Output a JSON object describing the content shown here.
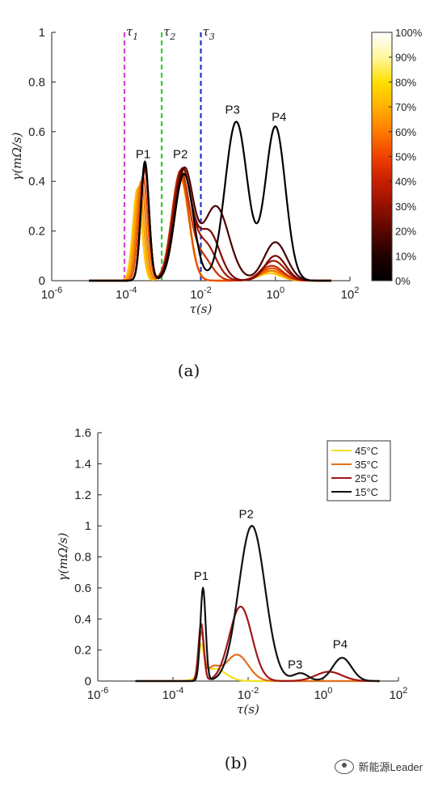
{
  "chart_data": [
    {
      "type": "line",
      "panel": "(a)",
      "xscale": "log",
      "xlim_exp": [
        -6,
        2
      ],
      "ylim": [
        0,
        1
      ],
      "xlabel": "τ(s)",
      "ylabel": "γ(mΩ/s)",
      "x_tick_labels": [
        "10-6",
        "10-4",
        "10-2",
        "100",
        "102"
      ],
      "y_ticks": [
        0,
        0.2,
        0.4,
        0.6,
        0.8,
        1
      ],
      "y_tick_labels": [
        "0",
        "0.2",
        "0.4",
        "0.6",
        "0.8",
        "1"
      ],
      "vlines": [
        {
          "label": "τ1",
          "x_exp": -4.05,
          "color": "#e040e0"
        },
        {
          "label": "τ2",
          "x_exp": -3.05,
          "color": "#33cc33"
        },
        {
          "label": "τ3",
          "x_exp": -2.0,
          "color": "#2233cc"
        }
      ],
      "peak_labels": [
        {
          "text": "P1",
          "x_exp": -3.55,
          "y": 0.48
        },
        {
          "text": "P2",
          "x_exp": -2.55,
          "y": 0.48
        },
        {
          "text": "P3",
          "x_exp": -1.15,
          "y": 0.66
        },
        {
          "text": "P4",
          "x_exp": 0.1,
          "y": 0.63
        }
      ],
      "colorbar": {
        "labels": [
          "100%",
          "90%",
          "80%",
          "70%",
          "60%",
          "50%",
          "40%",
          "30%",
          "20%",
          "10%",
          "0%"
        ],
        "colors": [
          "#ffffff",
          "#fff6a0",
          "#ffe000",
          "#ffb000",
          "#ff7a00",
          "#f04000",
          "#c81e00",
          "#941000",
          "#5a0600",
          "#200000",
          "#000000"
        ]
      },
      "series": [
        {
          "soc": 0,
          "color": "#000000",
          "peaks": [
            [
              -3.5,
              0.48,
              0.11
            ],
            [
              -2.45,
              0.43,
              0.25
            ],
            [
              -1.05,
              0.64,
              0.3
            ],
            [
              0.0,
              0.62,
              0.27
            ]
          ]
        },
        {
          "soc": 10,
          "color": "#4a0000",
          "peaks": [
            [
              -3.5,
              0.47,
              0.11
            ],
            [
              -2.45,
              0.44,
              0.24
            ],
            [
              -1.6,
              0.3,
              0.35
            ],
            [
              0.0,
              0.155,
              0.3
            ]
          ]
        },
        {
          "soc": 20,
          "color": "#7a0a00",
          "peaks": [
            [
              -3.5,
              0.46,
              0.11
            ],
            [
              -2.5,
              0.44,
              0.24
            ],
            [
              -1.8,
              0.2,
              0.3
            ],
            [
              0.0,
              0.1,
              0.28
            ]
          ]
        },
        {
          "soc": 30,
          "color": "#a01800",
          "peaks": [
            [
              -3.5,
              0.46,
              0.11
            ],
            [
              -2.5,
              0.43,
              0.23
            ],
            [
              -1.9,
              0.15,
              0.3
            ],
            [
              -0.05,
              0.08,
              0.3
            ]
          ]
        },
        {
          "soc": 40,
          "color": "#c83000",
          "peaks": [
            [
              -3.5,
              0.45,
              0.11
            ],
            [
              -2.55,
              0.43,
              0.23
            ],
            [
              -2.0,
              0.1,
              0.28
            ],
            [
              -0.1,
              0.06,
              0.3
            ]
          ]
        },
        {
          "soc": 50,
          "color": "#e85000",
          "peaks": [
            [
              -3.55,
              0.42,
              0.12
            ],
            [
              -2.55,
              0.43,
              0.23
            ],
            [
              -0.1,
              0.05,
              0.3
            ]
          ]
        },
        {
          "soc": 60,
          "color": "#f07a00",
          "peaks": [
            [
              -3.6,
              0.4,
              0.12
            ],
            [
              -2.55,
              0.42,
              0.23
            ],
            [
              -0.1,
              0.04,
              0.3
            ]
          ]
        },
        {
          "soc": 70,
          "color": "#f7a000",
          "peaks": [
            [
              -3.65,
              0.38,
              0.12
            ],
            [
              -2.55,
              0.42,
              0.23
            ],
            [
              -0.15,
              0.04,
              0.3
            ]
          ]
        },
        {
          "soc": 80,
          "color": "#ffc400",
          "peaks": [
            [
              -3.7,
              0.37,
              0.12
            ],
            [
              -2.55,
              0.41,
              0.23
            ],
            [
              -0.15,
              0.03,
              0.3
            ]
          ]
        },
        {
          "soc": 90,
          "color": "#ffe040",
          "peaks": [
            [
              -3.7,
              0.36,
              0.12
            ],
            [
              -2.55,
              0.41,
              0.23
            ],
            [
              -0.15,
              0.03,
              0.3
            ]
          ]
        }
      ]
    },
    {
      "type": "line",
      "panel": "(b)",
      "xscale": "log",
      "xlim_exp": [
        -6,
        2
      ],
      "ylim": [
        0,
        1.6
      ],
      "xlabel": "τ(s)",
      "ylabel": "γ(mΩ/s)",
      "x_tick_labels": [
        "10-6",
        "10-4",
        "10-2",
        "100",
        "102"
      ],
      "y_ticks": [
        0,
        0.2,
        0.4,
        0.6,
        0.8,
        1,
        1.2,
        1.4,
        1.6
      ],
      "y_tick_labels": [
        "0",
        "0.2",
        "0.4",
        "0.6",
        "0.8",
        "1",
        "1.2",
        "1.4",
        "1.6"
      ],
      "peak_labels": [
        {
          "text": "P1",
          "x_exp": -3.25,
          "y": 0.63
        },
        {
          "text": "P2",
          "x_exp": -2.05,
          "y": 1.03
        },
        {
          "text": "P3",
          "x_exp": -0.75,
          "y": 0.06
        },
        {
          "text": "P4",
          "x_exp": 0.45,
          "y": 0.19
        }
      ],
      "legend": {
        "placement": "top-right"
      },
      "series": [
        {
          "name": "45°C",
          "color": "#f0e020",
          "peaks": [
            [
              -3.25,
              0.2,
              0.07
            ],
            [
              -2.9,
              0.08,
              0.3
            ]
          ]
        },
        {
          "name": "35°C",
          "color": "#e07020",
          "peaks": [
            [
              -3.25,
              0.3,
              0.07
            ],
            [
              -2.95,
              0.08,
              0.18
            ],
            [
              -2.3,
              0.17,
              0.3
            ]
          ]
        },
        {
          "name": "25°C",
          "color": "#a01818",
          "peaks": [
            [
              -3.25,
              0.37,
              0.07
            ],
            [
              -2.2,
              0.48,
              0.3
            ],
            [
              0.15,
              0.06,
              0.35
            ]
          ]
        },
        {
          "name": "15°C",
          "color": "#111111",
          "peaks": [
            [
              -3.2,
              0.6,
              0.07
            ],
            [
              -1.9,
              1.0,
              0.35
            ],
            [
              -0.6,
              0.05,
              0.2
            ],
            [
              0.5,
              0.15,
              0.25
            ]
          ]
        }
      ]
    }
  ],
  "watermark": {
    "text": "新能源Leader"
  }
}
